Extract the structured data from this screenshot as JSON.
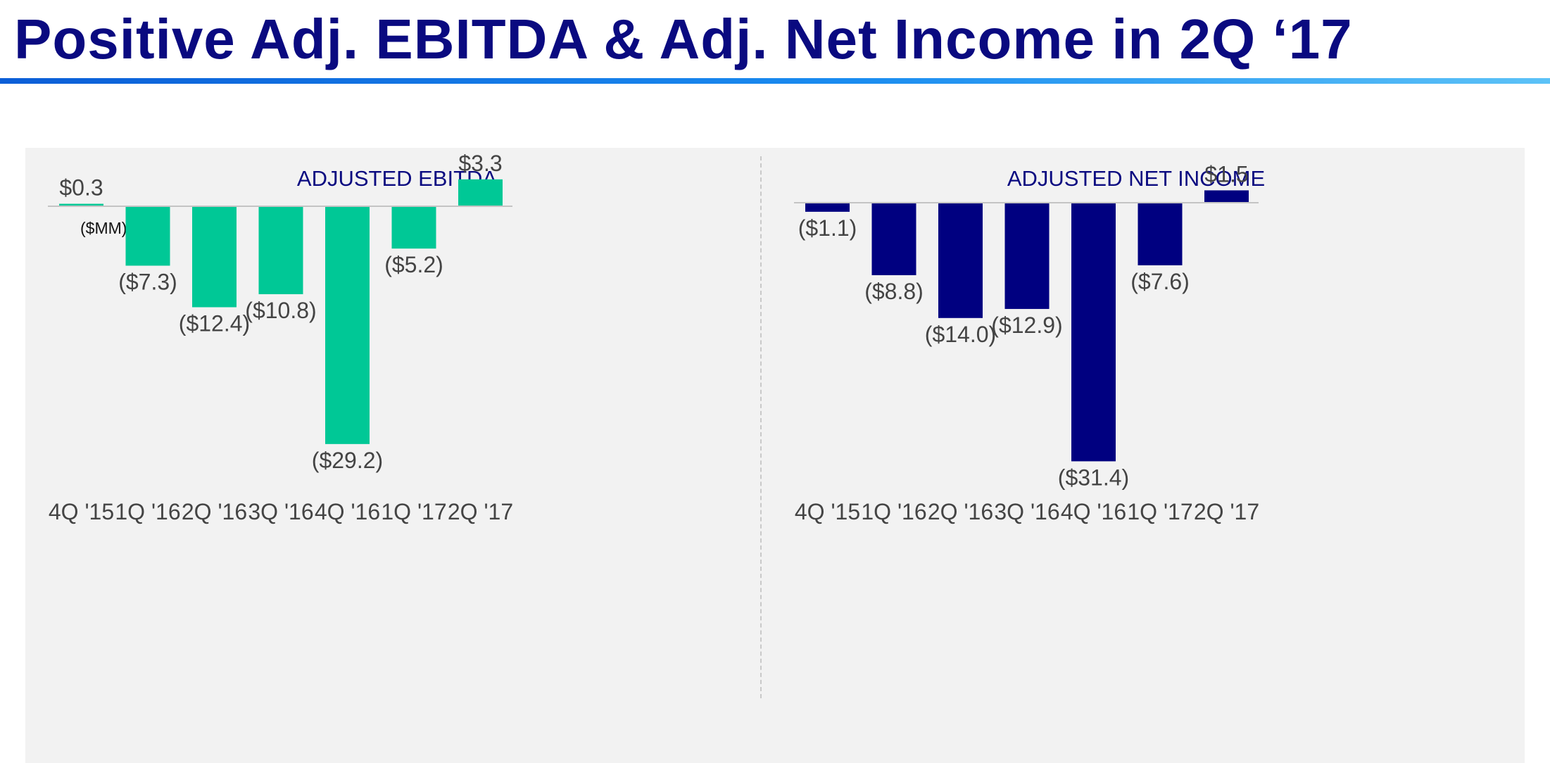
{
  "page": {
    "title": "Positive Adj. EBITDA & Adj. Net Income in 2Q ‘17"
  },
  "colors": {
    "title": "#0a0a80",
    "panel_background": "#f2f2f2",
    "ebitda_bars": "#00c896",
    "net_income_bars": "#000080",
    "labels": "#444444"
  },
  "chart_data": [
    {
      "type": "bar",
      "title": "ADJUSTED EBITDA",
      "units": "($MM)",
      "categories": [
        "4Q '15",
        "1Q '16",
        "2Q '16",
        "3Q '16",
        "4Q '16",
        "1Q '17",
        "2Q '17"
      ],
      "values": [
        0.3,
        -7.3,
        -12.4,
        -10.8,
        -29.2,
        -5.2,
        3.3
      ],
      "value_labels": [
        "$0.3",
        "($7.3)",
        "($12.4)",
        "($10.8)",
        "($29.2)",
        "($5.2)",
        "$3.3"
      ],
      "ylim": [
        -29.2,
        3.3
      ],
      "grid": false,
      "legend": "none",
      "bar_color": "#00c896"
    },
    {
      "type": "bar",
      "title": "ADJUSTED NET INCOME",
      "categories": [
        "4Q '15",
        "1Q '16",
        "2Q '16",
        "3Q '16",
        "4Q '16",
        "1Q '17",
        "2Q '17"
      ],
      "values": [
        -1.1,
        -8.8,
        -14.0,
        -12.9,
        -31.4,
        -7.6,
        1.5
      ],
      "value_labels": [
        "($1.1)",
        "($8.8)",
        "($14.0)",
        "($12.9)",
        "($31.4)",
        "($7.6)",
        "$1.5"
      ],
      "ylim": [
        -31.4,
        1.5
      ],
      "grid": false,
      "legend": "none",
      "bar_color": "#000080"
    }
  ]
}
